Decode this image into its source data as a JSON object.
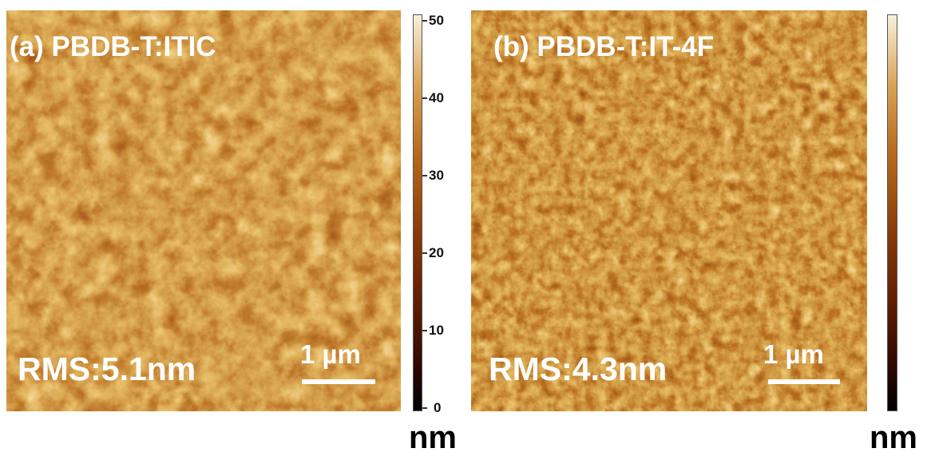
{
  "panel_a": {
    "title": "(a) PBDB-T:ITIC",
    "rms": "RMS:5.1nm",
    "scale_bar": "1 µm"
  },
  "panel_b": {
    "title": "(b) PBDB-T:IT-4F",
    "rms": "RMS:4.3nm",
    "scale_bar": "1 µm"
  },
  "colorbar_a": {
    "ticks": [
      "50",
      "40",
      "30",
      "20",
      "10",
      "0"
    ],
    "unit": "nm"
  },
  "colorbar_b": {
    "unit": "nm"
  },
  "colors": {
    "height_low": "#1a0400",
    "height_mid": "#8a3a06",
    "height_high": "#f0d9a8"
  }
}
